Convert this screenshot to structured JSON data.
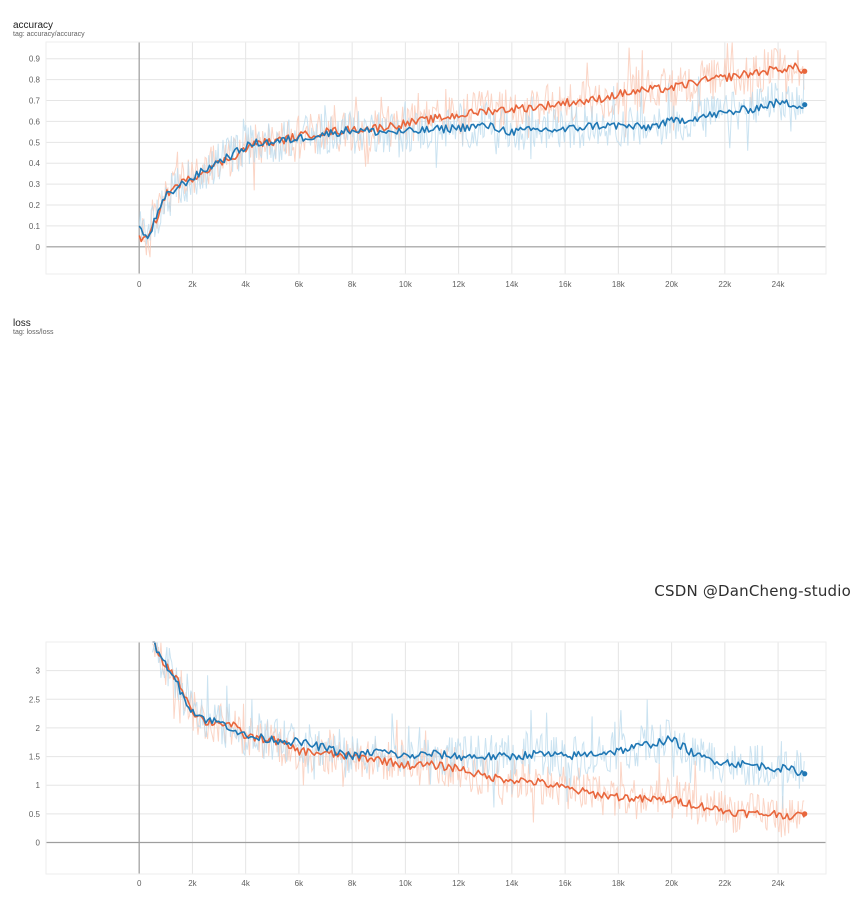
{
  "watermark": "CSDN @DanCheng-studio",
  "colors": {
    "orange": "#e8663c",
    "blue": "#1f77b4",
    "orange_raw": "#f9c7b3",
    "blue_raw": "#b9d9ec",
    "grid": "#e5e5e5",
    "axis": "#9e9e9e"
  },
  "chart_data": [
    {
      "type": "line",
      "title": "accuracy",
      "subtitle": "tag: accuracy/accuracy",
      "xlim": [
        -3500,
        25800
      ],
      "ylim": [
        -0.13,
        0.98
      ],
      "x_ticks": [
        0,
        2000,
        4000,
        6000,
        8000,
        10000,
        12000,
        14000,
        16000,
        18000,
        20000,
        22000,
        24000
      ],
      "x_tick_labels": [
        "0",
        "2k",
        "4k",
        "6k",
        "8k",
        "10k",
        "12k",
        "14k",
        "16k",
        "18k",
        "20k",
        "22k",
        "24k"
      ],
      "y_ticks": [
        0,
        0.1,
        0.2,
        0.3,
        0.4,
        0.5,
        0.6,
        0.7,
        0.8,
        0.9
      ],
      "y_tick_labels": [
        "0",
        "0.1",
        "0.2",
        "0.3",
        "0.4",
        "0.5",
        "0.6",
        "0.7",
        "0.8",
        "0.9"
      ],
      "series": [
        {
          "name": "orange",
          "x": [
            0,
            300,
            600,
            1000,
            1500,
            2000,
            2500,
            3000,
            3500,
            4000,
            4500,
            5000,
            6000,
            7000,
            8000,
            9000,
            10000,
            11000,
            12000,
            13000,
            14000,
            15000,
            16000,
            17000,
            18000,
            19000,
            20000,
            21000,
            22000,
            23000,
            24000,
            24700,
            25000
          ],
          "y": [
            0.05,
            0.03,
            0.12,
            0.25,
            0.3,
            0.33,
            0.37,
            0.4,
            0.43,
            0.47,
            0.5,
            0.5,
            0.53,
            0.55,
            0.56,
            0.57,
            0.59,
            0.61,
            0.63,
            0.65,
            0.66,
            0.67,
            0.69,
            0.7,
            0.73,
            0.75,
            0.76,
            0.79,
            0.81,
            0.83,
            0.85,
            0.86,
            0.84
          ]
        },
        {
          "name": "blue",
          "x": [
            0,
            300,
            600,
            1000,
            1500,
            2000,
            2500,
            3000,
            3500,
            4000,
            4500,
            5000,
            6000,
            7000,
            8000,
            9000,
            10000,
            11000,
            12000,
            13000,
            14000,
            15000,
            16000,
            17000,
            18000,
            19000,
            20000,
            21000,
            22000,
            23000,
            24000,
            24700,
            25000
          ],
          "y": [
            0.1,
            0.03,
            0.13,
            0.24,
            0.29,
            0.33,
            0.37,
            0.41,
            0.44,
            0.48,
            0.5,
            0.5,
            0.52,
            0.54,
            0.56,
            0.55,
            0.55,
            0.56,
            0.57,
            0.58,
            0.55,
            0.56,
            0.56,
            0.58,
            0.58,
            0.57,
            0.6,
            0.62,
            0.64,
            0.66,
            0.69,
            0.68,
            0.68
          ]
        }
      ]
    },
    {
      "type": "line",
      "title": "loss",
      "subtitle": "tag: loss/loss",
      "xlim": [
        -3500,
        25800
      ],
      "ylim": [
        -0.55,
        3.5
      ],
      "x_ticks": [
        0,
        2000,
        4000,
        6000,
        8000,
        10000,
        12000,
        14000,
        16000,
        18000,
        20000,
        22000,
        24000
      ],
      "x_tick_labels": [
        "0",
        "2k",
        "4k",
        "6k",
        "8k",
        "10k",
        "12k",
        "14k",
        "16k",
        "18k",
        "20k",
        "22k",
        "24k"
      ],
      "y_ticks": [
        0,
        0.5,
        1,
        1.5,
        2,
        2.5,
        3
      ],
      "y_tick_labels": [
        "0",
        "0.5",
        "1",
        "1.5",
        "2",
        "2.5",
        "3"
      ],
      "series": [
        {
          "name": "orange",
          "x": [
            500,
            800,
            1200,
            1600,
            2000,
            2500,
            3000,
            3500,
            4000,
            5000,
            6000,
            7000,
            8000,
            9000,
            10000,
            11000,
            12000,
            13000,
            14000,
            15000,
            16000,
            17000,
            18000,
            19000,
            20000,
            21000,
            22000,
            23000,
            24000,
            24700,
            25000
          ],
          "y": [
            3.6,
            3.2,
            3.0,
            2.7,
            2.3,
            2.1,
            2.1,
            2.05,
            1.85,
            1.8,
            1.6,
            1.55,
            1.5,
            1.45,
            1.35,
            1.35,
            1.3,
            1.15,
            1.1,
            1.05,
            0.95,
            0.85,
            0.8,
            0.75,
            0.75,
            0.65,
            0.55,
            0.5,
            0.5,
            0.45,
            0.5
          ]
        },
        {
          "name": "blue",
          "x": [
            500,
            800,
            1200,
            1600,
            2000,
            2500,
            3000,
            3500,
            4000,
            5000,
            6000,
            7000,
            8000,
            9000,
            10000,
            11000,
            12000,
            13000,
            14000,
            15000,
            16000,
            17000,
            18000,
            19000,
            20000,
            21000,
            22000,
            23000,
            24000,
            24700,
            25000
          ],
          "y": [
            3.6,
            3.2,
            3.0,
            2.6,
            2.3,
            2.15,
            2.1,
            2.0,
            1.85,
            1.8,
            1.75,
            1.65,
            1.5,
            1.6,
            1.5,
            1.55,
            1.5,
            1.5,
            1.5,
            1.55,
            1.5,
            1.55,
            1.6,
            1.7,
            1.8,
            1.5,
            1.4,
            1.35,
            1.3,
            1.25,
            1.2
          ]
        }
      ]
    }
  ]
}
